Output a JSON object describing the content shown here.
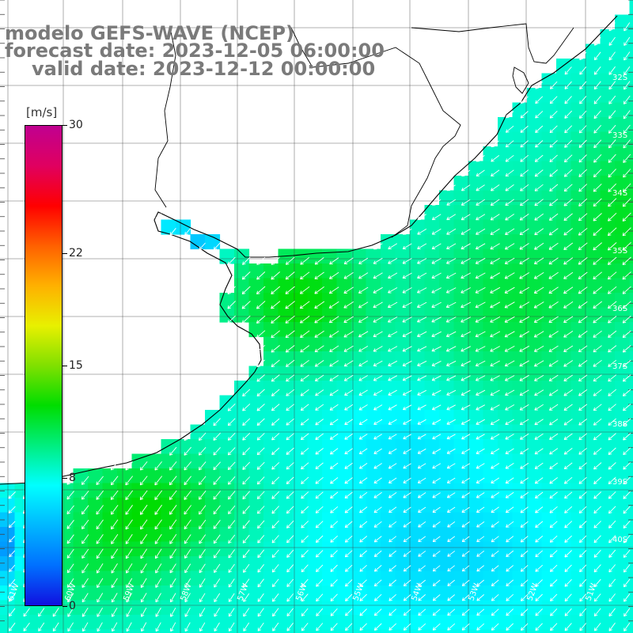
{
  "title": {
    "line1": "modelo GEFS-WAVE (NCEP)",
    "line2": "forecast date: 2023-12-05 06:00:00",
    "line3": "valid date: 2023-12-12 00:00:00"
  },
  "colorbar": {
    "unit": "[m/s]",
    "ticks": [
      "30",
      "22",
      "15",
      "8",
      "0"
    ],
    "tick_values": [
      30,
      22,
      15,
      8,
      0
    ],
    "colors": [
      "#1010e0",
      "#0070ff",
      "#00b8ff",
      "#00ffff",
      "#00ee80",
      "#00dd00",
      "#80e000",
      "#e8f000",
      "#ffb000",
      "#ff6000",
      "#ff0000",
      "#e00060",
      "#c00090"
    ]
  },
  "map_labels": {
    "latitudes": [
      "32S",
      "33S",
      "34S",
      "35S",
      "36S",
      "37S",
      "38S",
      "39S",
      "40S"
    ],
    "longitudes": [
      "61W",
      "60W",
      "59W",
      "58W",
      "57W",
      "56W",
      "55W",
      "54W",
      "53W",
      "52W",
      "51W"
    ]
  },
  "wind_field": {
    "direction": "NE to SW",
    "min_speed": 5,
    "max_speed": 13
  }
}
